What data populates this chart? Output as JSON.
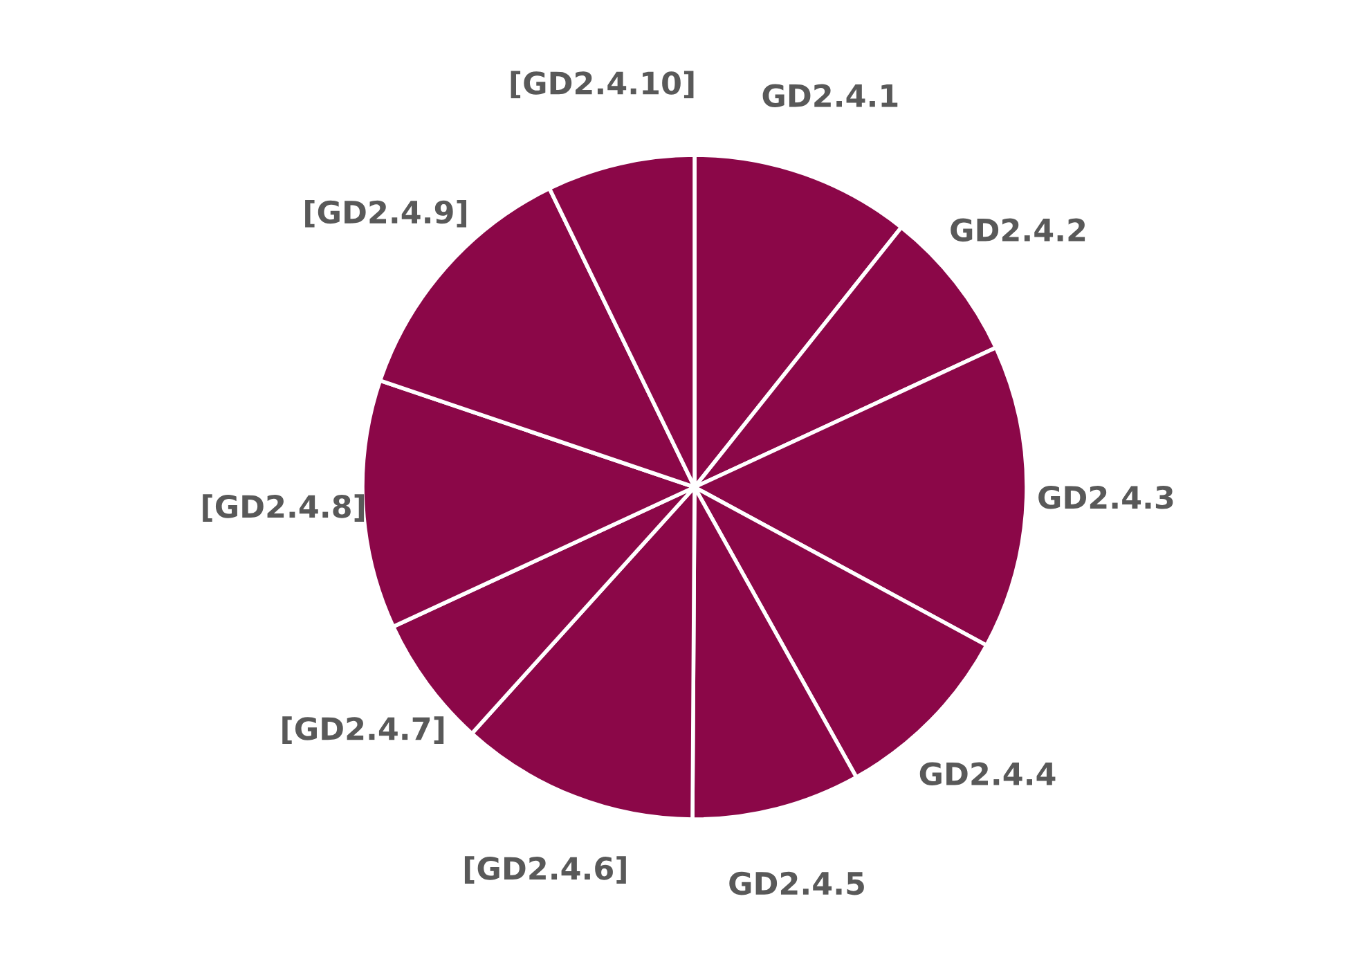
{
  "chart_data": {
    "type": "pie",
    "categories": [
      "GD2.4.1",
      "GD2.4.2",
      "GD2.4.3",
      "GD2.4.4",
      "GD2.4.5",
      "[GD2.4.6]",
      "[GD2.4.7]",
      "[GD2.4.8]",
      "[GD2.4.9]",
      "[GD2.4.10]"
    ],
    "values": [
      10.7,
      7.4,
      14.8,
      9.0,
      8.2,
      11.6,
      6.4,
      12.1,
      12.6,
      7.2
    ],
    "colors": [
      "#8b0748",
      "#8b0748",
      "#8b0748",
      "#8b0748",
      "#8b0748",
      "#8b0748",
      "#8b0748",
      "#8b0748",
      "#8b0748",
      "#8b0748"
    ],
    "legend": false
  }
}
